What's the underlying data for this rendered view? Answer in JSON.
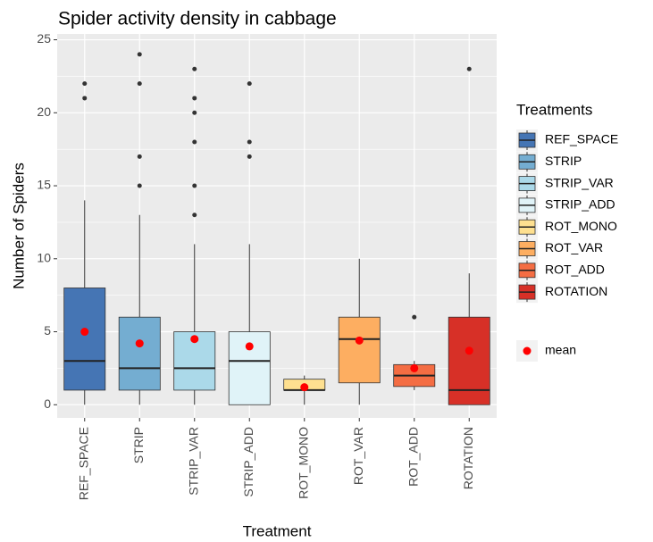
{
  "chart_data": {
    "type": "box",
    "title": "Spider activity density in cabbage",
    "x_label": "Treatment",
    "y_label": "Number of Spiders",
    "legend_title": "Treatments",
    "mean_label": "mean",
    "categories": [
      "REF_SPACE",
      "STRIP",
      "STRIP_VAR",
      "STRIP_ADD",
      "ROT_MONO",
      "ROT_VAR",
      "ROT_ADD",
      "ROTATION"
    ],
    "colors": [
      "#4575b4",
      "#74add1",
      "#abd9e9",
      "#e0f3f8",
      "#fee090",
      "#fdae61",
      "#f46d43",
      "#d73027"
    ],
    "mean_color": "#ff0000",
    "boxes": [
      {
        "min": 0,
        "q1": 1,
        "median": 3,
        "q3": 8,
        "max": 14,
        "outliers": [
          21,
          22
        ],
        "mean": 5
      },
      {
        "min": 0,
        "q1": 1,
        "median": 2.5,
        "q3": 6,
        "max": 13,
        "outliers": [
          15,
          17,
          22,
          24
        ],
        "mean": 4.2
      },
      {
        "min": 0,
        "q1": 1,
        "median": 2.5,
        "q3": 5,
        "max": 11,
        "outliers": [
          13,
          15,
          18,
          20,
          21,
          23
        ],
        "mean": 4.5
      },
      {
        "min": 0,
        "q1": 0,
        "median": 3,
        "q3": 5,
        "max": 11,
        "outliers": [
          17,
          18,
          22
        ],
        "mean": 4
      },
      {
        "min": 0,
        "q1": 1,
        "median": 1,
        "q3": 1.75,
        "max": 2,
        "outliers": [],
        "mean": 1.2
      },
      {
        "min": 0,
        "q1": 1.5,
        "median": 4.5,
        "q3": 6,
        "max": 10,
        "outliers": [],
        "mean": 4.4
      },
      {
        "min": 1,
        "q1": 1.25,
        "median": 2,
        "q3": 2.75,
        "max": 3,
        "outliers": [
          6
        ],
        "mean": 2.5
      },
      {
        "min": 0,
        "q1": 0,
        "median": 1,
        "q3": 6,
        "max": 9,
        "outliers": [
          23
        ],
        "mean": 3.7
      }
    ],
    "ylim": [
      -0.9,
      25.4
    ],
    "yticks": [
      0,
      5,
      10,
      15,
      20,
      25
    ],
    "grid": true
  }
}
